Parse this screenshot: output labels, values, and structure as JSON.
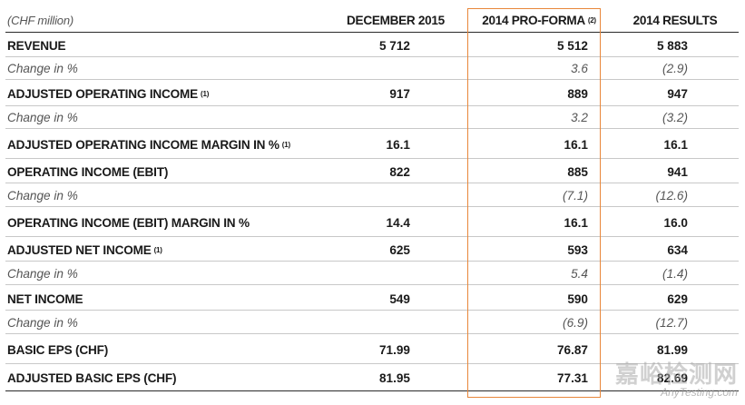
{
  "header": {
    "unit": "(CHF million)",
    "col1": "DECEMBER 2015",
    "col2": "2014 PRO-FORMA",
    "col2_note": "(2)",
    "col3": "2014 RESULTS"
  },
  "rows": [
    {
      "label": "REVENUE",
      "note": "",
      "v1": "5 712",
      "v2": "5 512",
      "v3": "5 883"
    },
    {
      "label": "Change in %",
      "note": "",
      "v1": "",
      "v2": "3.6",
      "v3": "(2.9)"
    },
    {
      "label": "ADJUSTED OPERATING INCOME",
      "note": "(1)",
      "v1": "917",
      "v2": "889",
      "v3": "947"
    },
    {
      "label": "Change in %",
      "note": "",
      "v1": "",
      "v2": "3.2",
      "v3": "(3.2)"
    },
    {
      "label": "ADJUSTED OPERATING INCOME MARGIN IN %",
      "note": "(1)",
      "v1": "16.1",
      "v2": "16.1",
      "v3": "16.1"
    },
    {
      "label": "OPERATING INCOME (EBIT)",
      "note": "",
      "v1": "822",
      "v2": "885",
      "v3": "941"
    },
    {
      "label": "Change in %",
      "note": "",
      "v1": "",
      "v2": "(7.1)",
      "v3": "(12.6)"
    },
    {
      "label": "OPERATING INCOME (EBIT) MARGIN IN %",
      "note": "",
      "v1": "14.4",
      "v2": "16.1",
      "v3": "16.0"
    },
    {
      "label": "ADJUSTED NET INCOME",
      "note": "(1)",
      "v1": "625",
      "v2": "593",
      "v3": "634"
    },
    {
      "label": "Change in %",
      "note": "",
      "v1": "",
      "v2": "5.4",
      "v3": "(1.4)"
    },
    {
      "label": "NET INCOME",
      "note": "",
      "v1": "549",
      "v2": "590",
      "v3": "629"
    },
    {
      "label": "Change in %",
      "note": "",
      "v1": "",
      "v2": "(6.9)",
      "v3": "(12.7)"
    },
    {
      "label": "BASIC EPS (CHF)",
      "note": "",
      "v1": "71.99",
      "v2": "76.87",
      "v3": "81.99"
    },
    {
      "label": "ADJUSTED BASIC EPS (CHF)",
      "note": "",
      "v1": "81.95",
      "v2": "77.31",
      "v3": "82.69"
    }
  ],
  "watermark": {
    "cn": "嘉峪检测网",
    "en": "AnyTesting.com"
  },
  "colors": {
    "highlight": "#e8873a",
    "rule": "#2a2a2a",
    "divider": "#c8c8c8"
  }
}
